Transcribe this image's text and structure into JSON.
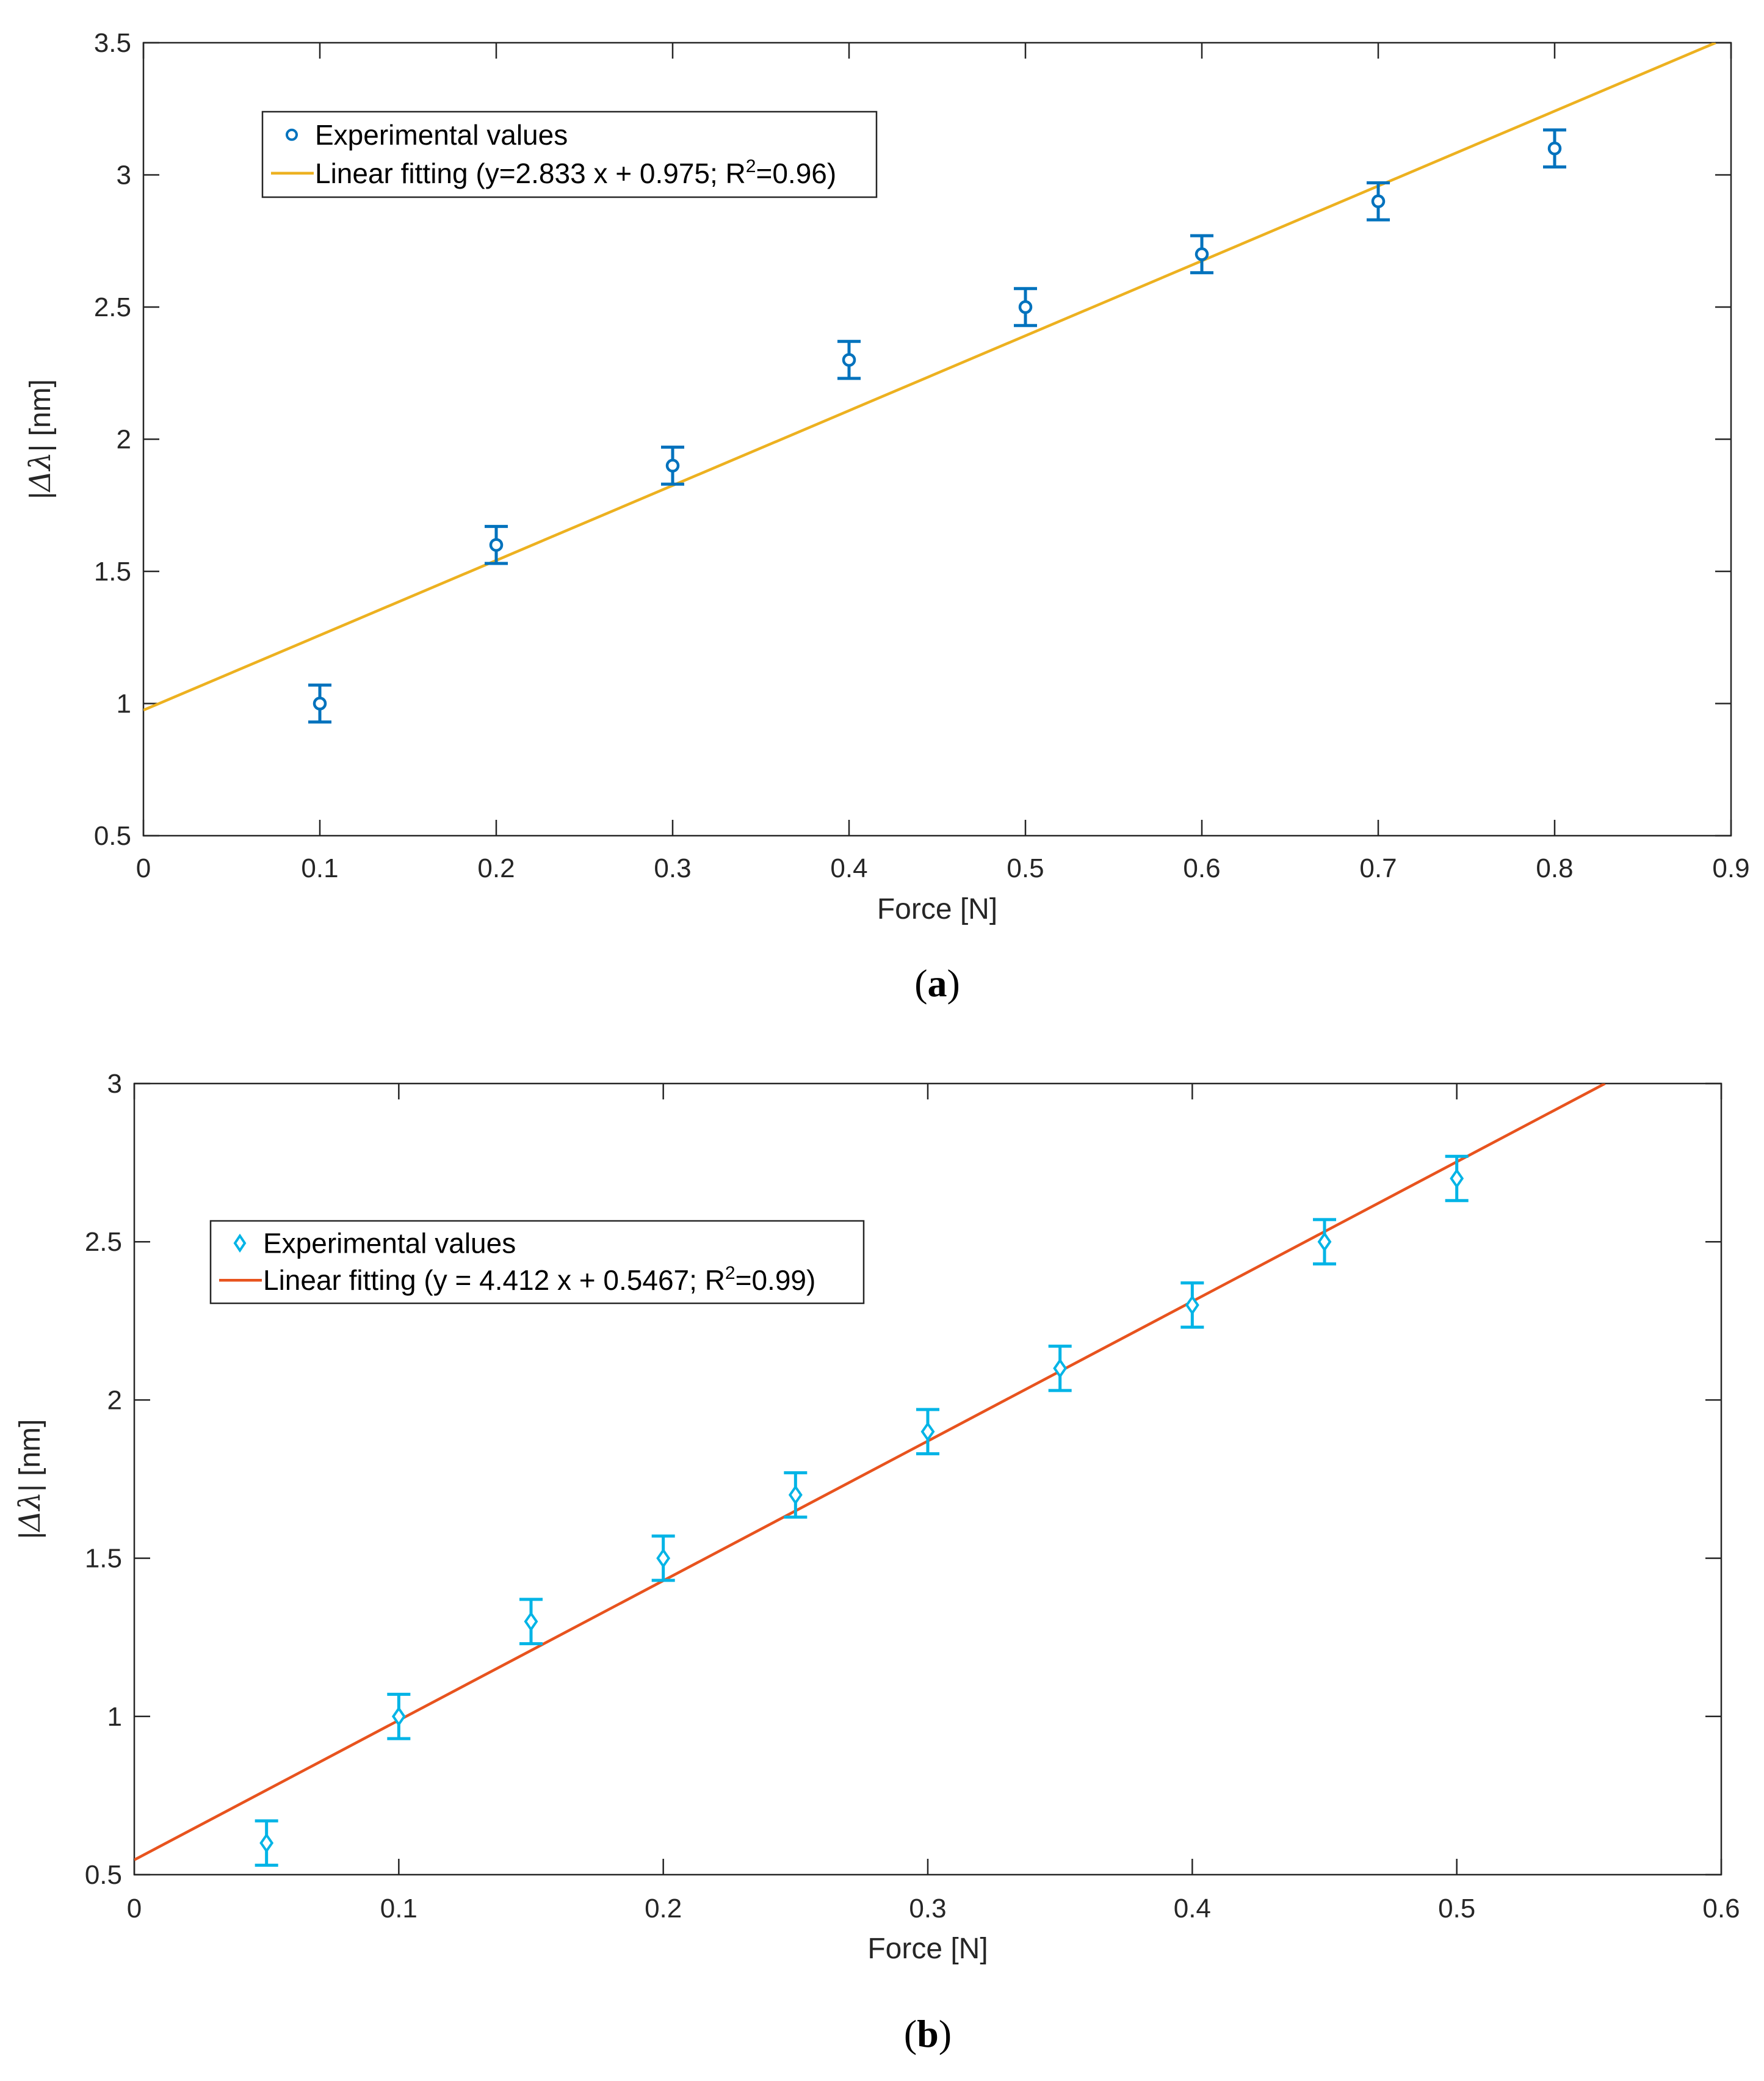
{
  "chart_data": [
    {
      "type": "scatter",
      "panel_label": "a",
      "xlabel": "Force [N]",
      "ylabel_prefix": "|",
      "ylabel_symbol": "Δλ",
      "ylabel_suffix": "| [nm]",
      "xlim": [
        0,
        0.9
      ],
      "ylim": [
        0.5,
        3.5
      ],
      "xticks": [
        0,
        0.1,
        0.2,
        0.3,
        0.4,
        0.5,
        0.6,
        0.7,
        0.8,
        0.9
      ],
      "xtick_labels": [
        "0",
        "0.1",
        "0.2",
        "0.3",
        "0.4",
        "0.5",
        "0.6",
        "0.7",
        "0.8",
        "0.9"
      ],
      "yticks": [
        0.5,
        1,
        1.5,
        2,
        2.5,
        3,
        3.5
      ],
      "ytick_labels": [
        "0.5",
        "1",
        "1.5",
        "2",
        "2.5",
        "3",
        "3.5"
      ],
      "grid": false,
      "legend_position": "top-left",
      "series": [
        {
          "name": "Experimental values",
          "kind": "errorbar",
          "marker": "circle",
          "color": "#0072BD",
          "x": [
            0.1,
            0.2,
            0.3,
            0.4,
            0.5,
            0.6,
            0.7,
            0.8
          ],
          "y": [
            1.0,
            1.6,
            1.9,
            2.3,
            2.5,
            2.7,
            2.9,
            3.1
          ],
          "error": [
            0.07,
            0.07,
            0.07,
            0.07,
            0.07,
            0.07,
            0.07,
            0.07
          ]
        },
        {
          "name_parts": [
            "Linear fitting (y=2.833 x + 0.975; R",
            "2",
            "=0.96)"
          ],
          "kind": "fit_line",
          "color": "#EDB120",
          "slope": 2.833,
          "intercept": 0.975
        }
      ]
    },
    {
      "type": "scatter",
      "panel_label": "b",
      "xlabel": "Force [N]",
      "ylabel_prefix": "|",
      "ylabel_symbol": "Δλ",
      "ylabel_suffix": "| [nm]",
      "xlim": [
        0,
        0.6
      ],
      "ylim": [
        0.5,
        3
      ],
      "xticks": [
        0,
        0.1,
        0.2,
        0.3,
        0.4,
        0.5,
        0.6
      ],
      "xtick_labels": [
        "0",
        "0.1",
        "0.2",
        "0.3",
        "0.4",
        "0.5",
        "0.6"
      ],
      "yticks": [
        0.5,
        1,
        1.5,
        2,
        2.5,
        3
      ],
      "ytick_labels": [
        "0.5",
        "1",
        "1.5",
        "2",
        "2.5",
        "3"
      ],
      "grid": false,
      "legend_position": "upper-left",
      "series": [
        {
          "name": "Experimental values",
          "kind": "errorbar",
          "marker": "diamond",
          "color": "#00B4E6",
          "x": [
            0.05,
            0.1,
            0.15,
            0.2,
            0.25,
            0.3,
            0.35,
            0.4,
            0.45,
            0.5
          ],
          "y": [
            0.6,
            1.0,
            1.3,
            1.5,
            1.7,
            1.9,
            2.1,
            2.3,
            2.5,
            2.7
          ],
          "error": [
            0.07,
            0.07,
            0.07,
            0.07,
            0.07,
            0.07,
            0.07,
            0.07,
            0.07,
            0.07
          ]
        },
        {
          "name_parts": [
            "Linear fitting (y = 4.412 x + 0.5467; R",
            "2",
            "=0.99)"
          ],
          "kind": "fit_line",
          "color": "#E8531E",
          "slope": 4.412,
          "intercept": 0.5467
        }
      ]
    }
  ]
}
